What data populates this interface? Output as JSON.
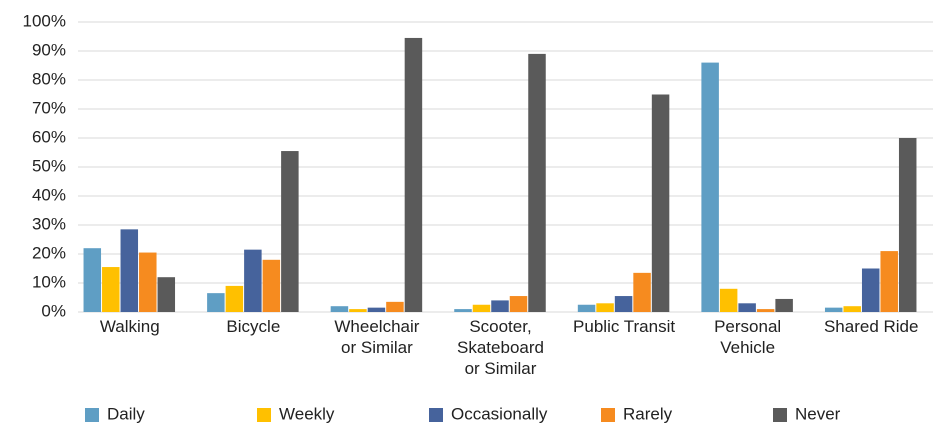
{
  "chart_data": {
    "type": "bar",
    "categories": [
      "Walking",
      "Bicycle",
      "Wheelchair\nor Similar",
      "Scooter,\nSkateboard\nor Similar",
      "Public Transit",
      "Personal\nVehicle",
      "Shared Ride"
    ],
    "series": [
      {
        "name": "Daily",
        "color": "#5f9ec4",
        "values": [
          22,
          6.5,
          2,
          1,
          2.5,
          86,
          1.5
        ]
      },
      {
        "name": "Weekly",
        "color": "#ffc000",
        "values": [
          15.5,
          9,
          1,
          2.5,
          3,
          8,
          2
        ]
      },
      {
        "name": "Occasionally",
        "color": "#46639c",
        "values": [
          28.5,
          21.5,
          1.5,
          4,
          5.5,
          3,
          15
        ]
      },
      {
        "name": "Rarely",
        "color": "#f68b1f",
        "values": [
          20.5,
          18,
          3.5,
          5.5,
          13.5,
          1,
          21
        ]
      },
      {
        "name": "Never",
        "color": "#5a5a5a",
        "values": [
          12,
          55.5,
          94.5,
          89,
          75,
          4.5,
          60
        ]
      }
    ],
    "ylim": [
      0,
      100
    ],
    "yticks": [
      {
        "value": 0,
        "label": "0%"
      },
      {
        "value": 10,
        "label": "10%"
      },
      {
        "value": 20,
        "label": "20%"
      },
      {
        "value": 30,
        "label": "30%"
      },
      {
        "value": 40,
        "label": "40%"
      },
      {
        "value": 50,
        "label": "50%"
      },
      {
        "value": 60,
        "label": "60%"
      },
      {
        "value": 70,
        "label": "70%"
      },
      {
        "value": 80,
        "label": "80%"
      },
      {
        "value": 90,
        "label": "90%"
      },
      {
        "value": 100,
        "label": "100%"
      }
    ],
    "grid": true,
    "legend": "bottom"
  }
}
